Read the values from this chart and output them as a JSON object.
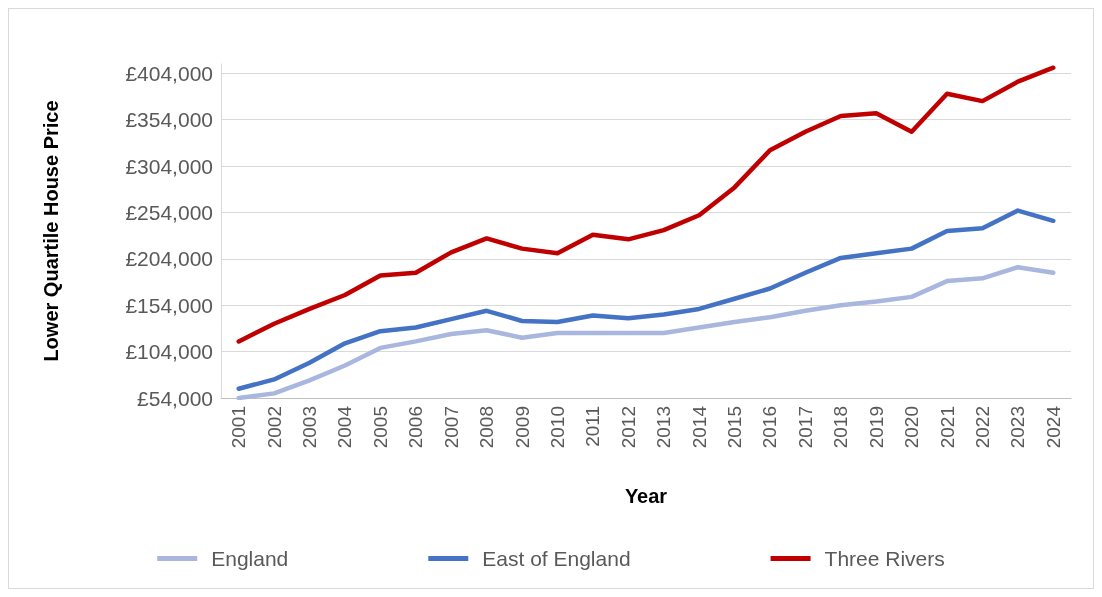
{
  "chart_data": {
    "type": "line",
    "xlabel": "Year",
    "ylabel": "Lower Quartile House Price",
    "categories": [
      "2001",
      "2002",
      "2003",
      "2004",
      "2005",
      "2006",
      "2007",
      "2008",
      "2009",
      "2010",
      "2011",
      "2012",
      "2013",
      "2014",
      "2015",
      "2016",
      "2017",
      "2018",
      "2019",
      "2020",
      "2021",
      "2022",
      "2023",
      "2024"
    ],
    "series": [
      {
        "name": "England",
        "color": "#a9b7de",
        "values": [
          54000,
          59000,
          73000,
          89000,
          108000,
          115000,
          123000,
          127000,
          119000,
          124000,
          124000,
          124000,
          124000,
          130000,
          136000,
          141000,
          148000,
          154000,
          158000,
          163000,
          180000,
          183000,
          195000,
          189000
        ]
      },
      {
        "name": "East of England",
        "color": "#4472c4",
        "values": [
          64000,
          74000,
          92000,
          113000,
          126000,
          130000,
          139000,
          148000,
          137000,
          136000,
          143000,
          140000,
          144000,
          150000,
          161000,
          172000,
          189000,
          205000,
          210000,
          215000,
          234000,
          237000,
          256000,
          245000
        ]
      },
      {
        "name": "Three Rivers",
        "color": "#c00000",
        "values": [
          115000,
          134000,
          150000,
          165000,
          186000,
          189000,
          211000,
          226000,
          215000,
          210000,
          230000,
          225000,
          235000,
          251000,
          281000,
          321000,
          341000,
          358000,
          361000,
          341000,
          382000,
          374000,
          395000,
          410000
        ]
      }
    ],
    "ylim": [
      54000,
      414000
    ],
    "yticks": [
      {
        "value": 54000,
        "label": "£54,000"
      },
      {
        "value": 104000,
        "label": "£104,000"
      },
      {
        "value": 154000,
        "label": "£154,000"
      },
      {
        "value": 204000,
        "label": "£204,000"
      },
      {
        "value": 254000,
        "label": "£254,000"
      },
      {
        "value": 304000,
        "label": "£304,000"
      },
      {
        "value": 354000,
        "label": "£354,000"
      },
      {
        "value": 404000,
        "label": "£404,000"
      }
    ],
    "grid": "y",
    "legend": "bottom",
    "marker": "none",
    "line_style": "solid"
  }
}
